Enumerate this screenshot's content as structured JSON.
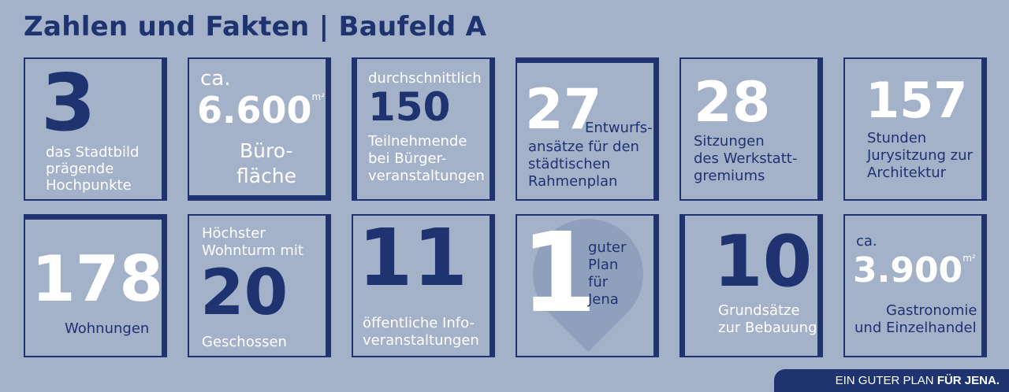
{
  "title": "Zahlen und Fakten | Baufeld A",
  "tiles": [
    {
      "number": "3",
      "caption": [
        "das Stadtbild",
        "prägende",
        "Hochpunkte"
      ]
    },
    {
      "prefix": "ca.",
      "number": "6.600",
      "unit": "m²",
      "caption": [
        "Büro-",
        "fläche"
      ]
    },
    {
      "prefix": "durchschnittlich",
      "number": "150",
      "caption": [
        "Teilnehmende",
        "bei Bürger-",
        "veranstaltungen"
      ]
    },
    {
      "number": "27",
      "caption_inline": "Entwurfs-",
      "caption": [
        "ansätze für den",
        "städtischen",
        "Rahmenplan"
      ]
    },
    {
      "number": "28",
      "caption": [
        "Sitzungen",
        "des Werkstatt-",
        "gremiums"
      ]
    },
    {
      "number": "157",
      "caption": [
        "Stunden",
        "Jurysitzung zur",
        "Architektur"
      ]
    },
    {
      "number": "178",
      "caption": [
        "Wohnungen"
      ]
    },
    {
      "prefix_lines": [
        "Höchster",
        "Wohnturm mit"
      ],
      "number": "20",
      "caption": [
        "Geschossen"
      ]
    },
    {
      "number": "11",
      "caption": [
        "öffentliche Info-",
        "veranstaltungen"
      ]
    },
    {
      "number": "1",
      "caption": [
        "guter",
        "Plan",
        "für",
        "Jena"
      ]
    },
    {
      "number": "10",
      "caption": [
        "Grundsätze",
        "zur Bebauung"
      ]
    },
    {
      "prefix": "ca.",
      "number": "3.900",
      "unit": "m²",
      "caption": [
        "Gastronomie",
        "und Einzelhandel"
      ]
    }
  ],
  "footer": {
    "normal": "EIN GUTER PLAN ",
    "bold": "FÜR JENA."
  },
  "colors": {
    "background": "#a3b1c9",
    "navy": "#1e3370",
    "white": "#ffffff"
  }
}
